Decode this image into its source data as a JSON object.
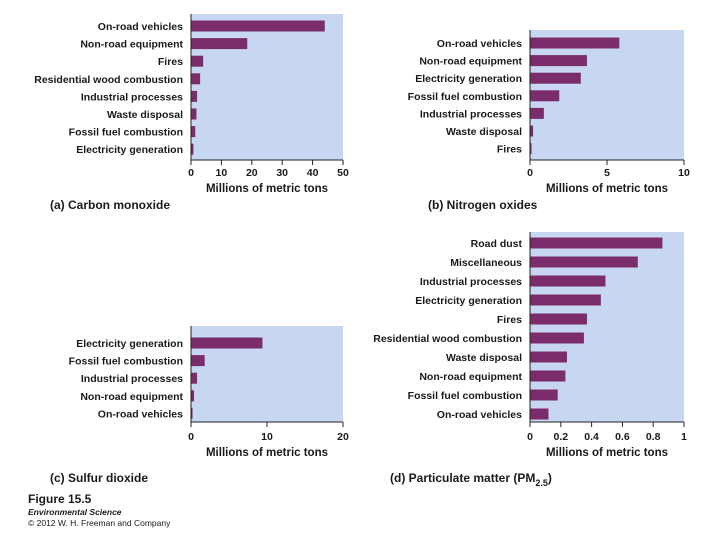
{
  "chart_data": [
    {
      "type": "bar",
      "orientation": "horizontal",
      "caption": "(a) Carbon monoxide",
      "xlabel": "Millions of metric tons",
      "categories": [
        "On-road vehicles",
        "Non-road equipment",
        "Fires",
        "Residential wood combustion",
        "Industrial processes",
        "Waste disposal",
        "Fossil fuel combustion",
        "Electricity generation"
      ],
      "values": [
        44,
        18.5,
        4,
        3,
        2,
        1.8,
        1.4,
        0.8
      ],
      "xlim": [
        0,
        50
      ],
      "ticks": [
        "0",
        "10",
        "20",
        "30",
        "40",
        "50"
      ]
    },
    {
      "type": "bar",
      "orientation": "horizontal",
      "caption": "(b) Nitrogen oxides",
      "xlabel": "Millions of metric tons",
      "categories": [
        "On-road vehicles",
        "Non-road equipment",
        "Electricity generation",
        "Fossil fuel combustion",
        "Industrial processes",
        "Waste disposal",
        "Fires"
      ],
      "values": [
        5.8,
        3.7,
        3.3,
        1.9,
        0.9,
        0.2,
        0.1
      ],
      "xlim": [
        0,
        10
      ],
      "ticks": [
        "0",
        "5",
        "10"
      ]
    },
    {
      "type": "bar",
      "orientation": "horizontal",
      "caption": "(c) Sulfur dioxide",
      "xlabel": "Millions of metric tons",
      "categories": [
        "Electricity generation",
        "Fossil fuel combustion",
        "Industrial processes",
        "Non-road equipment",
        "On-road vehicles"
      ],
      "values": [
        9.4,
        1.8,
        0.8,
        0.4,
        0.2
      ],
      "xlim": [
        0,
        20
      ],
      "ticks": [
        "0",
        "10",
        "20"
      ]
    },
    {
      "type": "bar",
      "orientation": "horizontal",
      "caption": "(d) Particulate matter (PM",
      "caption_sub": "2.5",
      "caption_end": ")",
      "xlabel": "Millions of metric tons",
      "categories": [
        "Road dust",
        "Miscellaneous",
        "Industrial processes",
        "Electricity generation",
        "Fires",
        "Residential wood combustion",
        "Waste disposal",
        "Non-road equipment",
        "Fossil fuel combustion",
        "On-road vehicles"
      ],
      "values": [
        0.86,
        0.7,
        0.49,
        0.46,
        0.37,
        0.35,
        0.24,
        0.23,
        0.18,
        0.12
      ],
      "xlim": [
        0,
        1
      ],
      "ticks": [
        "0",
        "0.2",
        "0.4",
        "0.6",
        "0.8",
        "1"
      ]
    }
  ],
  "figure": {
    "title": "Figure 15.5",
    "book": "Environmental Science",
    "copyright": "© 2012 W. H. Freeman and Company"
  }
}
